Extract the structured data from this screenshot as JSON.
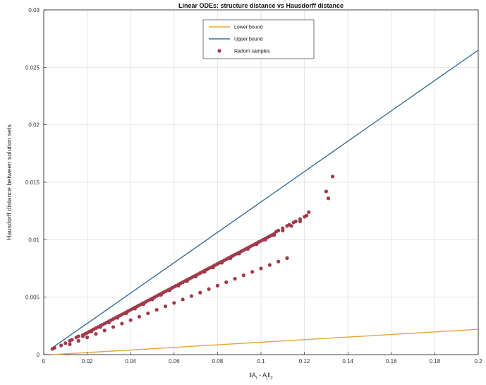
{
  "chart_data": {
    "type": "scatter",
    "title": "Linear ODEs: structure distance vs Hausdorff distance",
    "xlabel_main": "‖A",
    "xlabel_sub1": "i",
    "xlabel_mid": " - A",
    "xlabel_sub2": "j",
    "xlabel_end": "‖",
    "xlabel_sub3": "2",
    "ylabel": "Hausdorff distance between solution sets",
    "xlim": [
      0,
      0.2
    ],
    "ylim": [
      0,
      0.03
    ],
    "xticks": [
      0,
      0.02,
      0.04,
      0.06,
      0.08,
      0.1,
      0.12,
      0.14,
      0.16,
      0.18,
      0.2
    ],
    "xtick_labels": [
      "0",
      "0.02",
      "0.04",
      "0.06",
      "0.08",
      "0.1",
      "0.12",
      "0.14",
      "0.16",
      "0.18",
      "0.2"
    ],
    "yticks": [
      0,
      0.005,
      0.01,
      0.015,
      0.02,
      0.025,
      0.03
    ],
    "ytick_labels": [
      "0",
      "0.005",
      "0.01",
      "0.015",
      "0.02",
      "0.025",
      "0.03"
    ],
    "grid": true,
    "legend_position": "top-center",
    "series": [
      {
        "name": "Lower bound",
        "kind": "line",
        "color": "#e8a33c",
        "x": [
          0.004,
          0.2
        ],
        "y": [
          0.0,
          0.0022
        ]
      },
      {
        "name": "Upper bound",
        "kind": "line",
        "color": "#3a6f9a",
        "x": [
          0.004,
          0.2
        ],
        "y": [
          0.0006,
          0.0265
        ]
      },
      {
        "name": "Radom samples",
        "kind": "scatter",
        "color": "#a03a4a",
        "x": [
          0.004,
          0.005,
          0.008,
          0.01,
          0.012,
          0.013,
          0.015,
          0.016,
          0.018,
          0.019,
          0.02,
          0.021,
          0.022,
          0.023,
          0.024,
          0.025,
          0.026,
          0.027,
          0.028,
          0.029,
          0.03,
          0.031,
          0.032,
          0.033,
          0.034,
          0.035,
          0.036,
          0.037,
          0.038,
          0.039,
          0.04,
          0.041,
          0.042,
          0.043,
          0.044,
          0.045,
          0.046,
          0.047,
          0.048,
          0.049,
          0.05,
          0.051,
          0.052,
          0.053,
          0.054,
          0.055,
          0.056,
          0.057,
          0.058,
          0.059,
          0.06,
          0.061,
          0.062,
          0.063,
          0.064,
          0.065,
          0.066,
          0.067,
          0.068,
          0.069,
          0.07,
          0.071,
          0.072,
          0.073,
          0.074,
          0.075,
          0.076,
          0.077,
          0.078,
          0.079,
          0.08,
          0.081,
          0.082,
          0.083,
          0.084,
          0.085,
          0.086,
          0.087,
          0.088,
          0.089,
          0.09,
          0.091,
          0.092,
          0.093,
          0.094,
          0.095,
          0.096,
          0.097,
          0.098,
          0.099,
          0.1,
          0.101,
          0.102,
          0.103,
          0.104,
          0.105,
          0.106,
          0.107,
          0.108,
          0.11,
          0.112,
          0.113,
          0.115,
          0.116,
          0.118,
          0.12,
          0.121,
          0.122,
          0.13,
          0.131,
          0.133,
          0.012,
          0.016,
          0.02,
          0.024,
          0.028,
          0.032,
          0.036,
          0.04,
          0.044,
          0.048,
          0.052,
          0.056,
          0.06,
          0.064,
          0.068,
          0.072,
          0.076,
          0.08,
          0.084,
          0.088,
          0.092,
          0.096,
          0.1,
          0.104,
          0.108,
          0.112,
          0.018,
          0.022,
          0.026,
          0.03,
          0.034,
          0.038,
          0.042,
          0.046,
          0.05,
          0.054,
          0.058,
          0.062,
          0.066,
          0.07,
          0.074,
          0.078,
          0.082,
          0.086,
          0.09,
          0.094,
          0.098,
          0.102,
          0.106,
          0.11,
          0.114,
          0.118
        ],
        "y": [
          0.0005,
          0.0006,
          0.0008,
          0.001,
          0.0012,
          0.0013,
          0.0015,
          0.0016,
          0.0017,
          0.0018,
          0.0019,
          0.002,
          0.0021,
          0.0022,
          0.0023,
          0.0024,
          0.0025,
          0.0026,
          0.0027,
          0.0028,
          0.0029,
          0.003,
          0.0031,
          0.0032,
          0.0033,
          0.0034,
          0.0035,
          0.0036,
          0.0037,
          0.0038,
          0.0039,
          0.004,
          0.0041,
          0.0042,
          0.0043,
          0.0044,
          0.0045,
          0.0046,
          0.0047,
          0.0048,
          0.0049,
          0.005,
          0.0051,
          0.0052,
          0.0053,
          0.0054,
          0.0055,
          0.0056,
          0.0057,
          0.0058,
          0.0059,
          0.006,
          0.0061,
          0.0062,
          0.0063,
          0.0064,
          0.0065,
          0.0066,
          0.0067,
          0.0068,
          0.0069,
          0.007,
          0.0071,
          0.0072,
          0.0073,
          0.0074,
          0.0075,
          0.0076,
          0.0077,
          0.0078,
          0.0079,
          0.008,
          0.0081,
          0.0082,
          0.0083,
          0.0084,
          0.0085,
          0.0086,
          0.0087,
          0.0088,
          0.0089,
          0.009,
          0.0091,
          0.0092,
          0.0093,
          0.0094,
          0.0095,
          0.0096,
          0.0097,
          0.0098,
          0.0099,
          0.01,
          0.0101,
          0.0102,
          0.0103,
          0.0104,
          0.0105,
          0.0107,
          0.0108,
          0.011,
          0.0112,
          0.0113,
          0.0115,
          0.0116,
          0.0118,
          0.012,
          0.0121,
          0.0124,
          0.0142,
          0.0136,
          0.0155,
          0.0009,
          0.0012,
          0.0015,
          0.0018,
          0.0021,
          0.0024,
          0.0027,
          0.003,
          0.0033,
          0.0036,
          0.0039,
          0.0042,
          0.0045,
          0.0048,
          0.0051,
          0.0054,
          0.0057,
          0.006,
          0.0063,
          0.0066,
          0.0069,
          0.0072,
          0.0075,
          0.0078,
          0.0081,
          0.0084,
          0.0016,
          0.002,
          0.0024,
          0.0028,
          0.0032,
          0.0036,
          0.004,
          0.0044,
          0.0048,
          0.0052,
          0.0056,
          0.006,
          0.0064,
          0.0068,
          0.0072,
          0.0076,
          0.008,
          0.0084,
          0.0088,
          0.0092,
          0.0096,
          0.01,
          0.0104,
          0.0108,
          0.0112,
          0.0116
        ]
      }
    ]
  }
}
